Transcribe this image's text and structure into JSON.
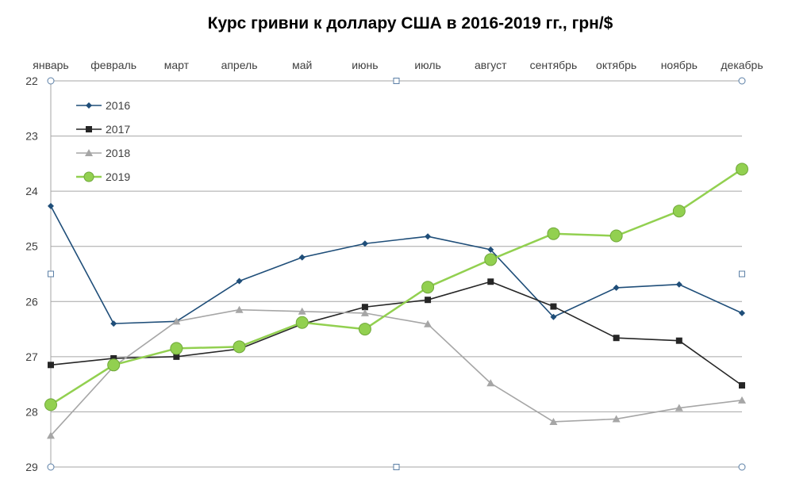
{
  "chart_data": {
    "type": "line",
    "title": "Курс гривни к доллару США в 2016-2019 гг., грн/$",
    "xlabel": "",
    "ylabel": "",
    "categories": [
      "январь",
      "февраль",
      "март",
      "апрель",
      "май",
      "июнь",
      "июль",
      "август",
      "сентябрь",
      "октябрь",
      "ноябрь",
      "декабрь"
    ],
    "y_axis": {
      "min": 22,
      "max": 29,
      "reversed": true,
      "ticks": [
        "22",
        "23",
        "24",
        "25",
        "26",
        "27",
        "28",
        "29"
      ]
    },
    "x_axis_position": "top",
    "grid": "horizontal",
    "legend_position": "top-left",
    "series": [
      {
        "name": "2016",
        "color": "#1f4e79",
        "marker": "diamond",
        "values": [
          24.27,
          26.4,
          26.36,
          25.63,
          25.2,
          24.95,
          24.82,
          25.06,
          26.28,
          25.75,
          25.69,
          26.21
        ]
      },
      {
        "name": "2017",
        "color": "#262626",
        "marker": "square",
        "values": [
          27.15,
          27.03,
          27.0,
          26.86,
          26.41,
          26.1,
          25.97,
          25.64,
          26.09,
          26.66,
          26.71,
          27.52
        ]
      },
      {
        "name": "2018",
        "color": "#a6a6a6",
        "marker": "triangle",
        "values": [
          28.43,
          27.18,
          26.36,
          26.15,
          26.18,
          26.21,
          26.41,
          27.48,
          28.18,
          28.13,
          27.93,
          27.79
        ]
      },
      {
        "name": "2019",
        "color": "#92d050",
        "marker": "circle",
        "values": [
          27.87,
          27.15,
          26.85,
          26.82,
          26.38,
          26.5,
          25.74,
          25.24,
          24.77,
          24.81,
          24.36,
          23.6
        ]
      }
    ]
  }
}
